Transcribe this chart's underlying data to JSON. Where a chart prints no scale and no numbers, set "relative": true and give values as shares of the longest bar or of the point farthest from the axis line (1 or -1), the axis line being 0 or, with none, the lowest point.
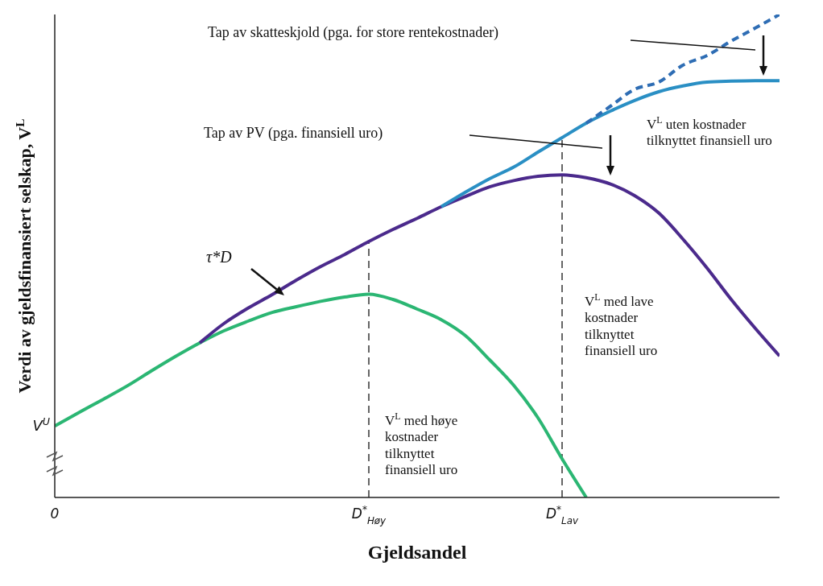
{
  "chart_data": {
    "type": "line",
    "relative": true,
    "xlabel": "Gjeldsandel",
    "ylabel": "Verdi av gjeldsfinansiert selskap, V$^{L}$",
    "categories": [
      "0",
      null,
      null,
      null,
      null,
      null,
      null,
      null,
      null,
      null,
      null,
      null,
      null,
      "D$^{*}$$_{Høy}$",
      null,
      null,
      null,
      null,
      null,
      null,
      null,
      "D$^{*}$$_{Lav}$",
      null,
      null,
      null,
      null,
      null,
      null,
      null,
      null,
      null
    ],
    "series": [
      {
        "color": "#2bb673",
        "values": [
          0.148,
          0.176,
          0.203,
          0.231,
          0.262,
          0.292,
          0.32,
          0.345,
          0.365,
          0.383,
          0.395,
          0.406,
          0.415,
          0.421,
          0.41,
          0.39,
          0.368,
          0.335,
          0.285,
          0.232,
          0.165,
          0.08,
          0,
          null,
          null,
          null,
          null,
          null,
          null,
          null,
          null
        ]
      },
      {
        "color": "#4b2a8c",
        "values": [
          null,
          null,
          null,
          null,
          null,
          null,
          0.32,
          0.36,
          0.392,
          0.42,
          0.45,
          0.478,
          0.503,
          0.53,
          0.555,
          0.578,
          0.602,
          0.623,
          0.643,
          0.656,
          0.665,
          0.668,
          0.662,
          0.649,
          0.625,
          0.589,
          0.535,
          0.475,
          0.41,
          0.35,
          0.293
        ]
      },
      {
        "color": "#2a8fc4",
        "values": [
          null,
          null,
          null,
          null,
          null,
          null,
          null,
          null,
          null,
          null,
          null,
          null,
          null,
          null,
          null,
          null,
          0.602,
          0.632,
          0.66,
          0.684,
          0.715,
          0.745,
          0.775,
          0.8,
          0.822,
          0.84,
          0.852,
          0.86,
          0.862,
          0.863,
          0.863
        ]
      },
      {
        "color": "#2e6db4",
        "line_style": "dashed",
        "values": [
          null,
          null,
          null,
          null,
          null,
          null,
          null,
          null,
          null,
          null,
          null,
          null,
          null,
          null,
          null,
          null,
          null,
          null,
          null,
          null,
          null,
          null,
          0.775,
          0.81,
          0.845,
          0.86,
          0.895,
          0.915,
          0.945,
          0.972,
          1
        ]
      }
    ],
    "ref_lines": [
      {
        "axis": "x",
        "value": "D$^{*}$$_{Høy}$",
        "line_style": "dashed",
        "color": "#555555"
      },
      {
        "axis": "x",
        "value": "D$^{*}$$_{Lav}$",
        "line_style": "dashed",
        "color": "#555555"
      }
    ],
    "annotations": [
      "Tap av skatteskjold (pga. for store rentekostnader)",
      "Tap av PV (pga. finansiell uro)",
      "τ*D",
      "V$^{L}$ uten kostnader\ntilknyttet finansiell uro",
      "V$^{L}$ med lave\nkostnader\ntilknyttet\nfinansiell uro",
      "V$^{L}$ med høye\nkostnader\ntilknyttet\nfinansiell uro",
      "V$^{U}$"
    ]
  }
}
